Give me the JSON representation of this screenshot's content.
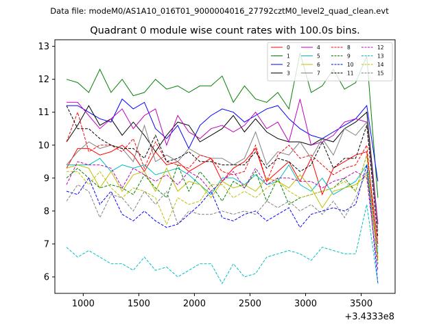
{
  "chart_data": {
    "type": "line",
    "suptitle": "Data file: modeM0/AS1A10_016T01_9000004016_27792cztM0_level2_quad_clean.evt",
    "title": "Quadrant 0 module wise count rates with 100.0s bins.",
    "xlabel": "",
    "ylabel": "",
    "x_offset_label": "+3.4333e8",
    "xlim": [
      745,
      3805
    ],
    "ylim": [
      5.5,
      13.2
    ],
    "x_ticks": [
      1000,
      1500,
      2000,
      2500,
      3000,
      3500
    ],
    "x_tick_labels": [
      "1000",
      "1500",
      "2000",
      "2500",
      "3000",
      "3500"
    ],
    "y_ticks": [
      6,
      7,
      8,
      9,
      10,
      11,
      12,
      13
    ],
    "y_tick_labels": [
      "6",
      "7",
      "8",
      "9",
      "10",
      "11",
      "12",
      "13"
    ],
    "legend_position": "top-right",
    "x": [
      850,
      950,
      1050,
      1150,
      1250,
      1350,
      1450,
      1550,
      1650,
      1750,
      1850,
      1950,
      2050,
      2150,
      2250,
      2350,
      2450,
      2550,
      2650,
      2750,
      2850,
      2950,
      3050,
      3150,
      3250,
      3350,
      3450,
      3550,
      3650
    ],
    "series": [
      {
        "name": "0",
        "color": "#ff0000",
        "dash": "solid",
        "values": [
          9.3,
          9.9,
          9.9,
          9.7,
          9.8,
          10.0,
          9.7,
          9.2,
          9.8,
          9.4,
          9.5,
          9.2,
          9.4,
          9.6,
          8.9,
          9.3,
          9.5,
          9.9,
          8.9,
          9.2,
          9.5,
          8.9,
          9.6,
          8.5,
          9.3,
          9.5,
          9.7,
          9.8,
          7.0
        ]
      },
      {
        "name": "1",
        "color": "#008000",
        "dash": "solid",
        "values": [
          12.0,
          11.9,
          11.6,
          12.3,
          11.6,
          12.0,
          11.5,
          11.6,
          12.0,
          11.7,
          11.8,
          11.6,
          11.8,
          11.8,
          12.1,
          11.3,
          11.8,
          11.4,
          11.3,
          11.6,
          11.1,
          12.8,
          11.6,
          11.8,
          12.3,
          11.7,
          11.9,
          12.7,
          8.4
        ]
      },
      {
        "name": "2",
        "color": "#0000ff",
        "dash": "solid",
        "values": [
          11.2,
          11.2,
          11.0,
          10.8,
          10.7,
          11.4,
          11.1,
          11.3,
          10.5,
          10.2,
          10.6,
          9.9,
          10.6,
          10.9,
          11.1,
          11.0,
          10.7,
          10.9,
          11.1,
          11.2,
          10.8,
          10.5,
          10.3,
          10.2,
          10.4,
          10.6,
          10.8,
          11.2,
          8.9
        ]
      },
      {
        "name": "3",
        "color": "#000000",
        "dash": "solid",
        "values": [
          10.1,
          10.6,
          11.2,
          10.6,
          10.8,
          10.3,
          10.7,
          10.3,
          9.8,
          10.3,
          10.7,
          10.6,
          10.1,
          10.3,
          10.5,
          10.9,
          10.4,
          10.8,
          10.4,
          10.2,
          10.1,
          10.1,
          10.0,
          10.2,
          10.1,
          10.5,
          10.7,
          11.0,
          7.6
        ]
      },
      {
        "name": "4",
        "color": "#bf00bf",
        "dash": "solid",
        "values": [
          11.3,
          11.3,
          10.9,
          10.5,
          10.8,
          11.1,
          10.5,
          10.9,
          11.1,
          10.0,
          10.9,
          10.4,
          10.2,
          10.5,
          10.6,
          10.4,
          10.6,
          11.0,
          10.5,
          10.7,
          10.1,
          11.4,
          10.0,
          10.1,
          10.3,
          10.7,
          10.8,
          10.7,
          7.6
        ]
      },
      {
        "name": "5",
        "color": "#00bfbf",
        "dash": "solid",
        "values": [
          9.4,
          9.4,
          9.4,
          9.6,
          9.2,
          9.4,
          9.3,
          9.4,
          9.1,
          9.2,
          9.3,
          9.1,
          8.8,
          8.5,
          9.0,
          9.0,
          8.8,
          9.1,
          8.8,
          8.9,
          9.4,
          8.8,
          8.6,
          9.0,
          8.5,
          8.7,
          8.9,
          9.4,
          6.7
        ]
      },
      {
        "name": "6",
        "color": "#bfbf00",
        "dash": "solid",
        "values": [
          9.3,
          9.4,
          9.3,
          8.7,
          9.2,
          8.6,
          9.1,
          9.2,
          8.6,
          9.3,
          8.6,
          8.9,
          8.8,
          8.4,
          8.9,
          8.7,
          8.8,
          8.6,
          9.0,
          8.9,
          8.7,
          9.1,
          8.7,
          8.1,
          8.6,
          8.7,
          8.8,
          9.1,
          6.6
        ]
      },
      {
        "name": "7",
        "color": "#808080",
        "dash": "solid",
        "values": [
          9.4,
          9.8,
          10.1,
          9.9,
          10.0,
          9.9,
          9.5,
          10.6,
          9.5,
          9.7,
          9.5,
          9.9,
          9.7,
          9.6,
          9.6,
          9.4,
          9.6,
          10.4,
          9.4,
          9.8,
          9.7,
          10.1,
          9.6,
          10.2,
          9.7,
          10.5,
          10.3,
          10.7,
          7.4
        ]
      },
      {
        "name": "8",
        "color": "#ff0000",
        "dash": "dashed",
        "values": [
          10.1,
          11.0,
          9.8,
          10.0,
          10.0,
          9.8,
          10.2,
          9.3,
          10.1,
          9.5,
          9.4,
          9.3,
          9.7,
          9.6,
          9.2,
          9.1,
          9.2,
          10.0,
          8.9,
          9.7,
          10.0,
          9.6,
          9.7,
          9.4,
          9.1,
          9.3,
          9.4,
          10.0,
          6.5
        ]
      },
      {
        "name": "9",
        "color": "#008000",
        "dash": "dashed",
        "values": [
          9.0,
          9.3,
          9.0,
          8.7,
          8.8,
          8.7,
          8.5,
          9.1,
          8.7,
          8.4,
          9.4,
          8.6,
          9.2,
          8.8,
          8.3,
          8.9,
          8.7,
          9.2,
          8.3,
          9.0,
          8.2,
          8.4,
          8.5,
          8.6,
          8.7,
          9.0,
          8.6,
          9.7,
          6.4
        ]
      },
      {
        "name": "10",
        "color": "#0000ff",
        "dash": "dashed",
        "values": [
          8.6,
          8.5,
          9.0,
          8.2,
          8.6,
          7.9,
          7.7,
          8.0,
          7.7,
          7.5,
          7.6,
          7.9,
          8.2,
          8.6,
          7.8,
          7.7,
          7.9,
          8.0,
          7.7,
          7.9,
          8.1,
          7.5,
          7.9,
          8.0,
          8.1,
          8.0,
          8.2,
          9.4,
          5.8
        ]
      },
      {
        "name": "11",
        "color": "#000000",
        "dash": "dashed",
        "values": [
          11.2,
          10.5,
          10.5,
          10.2,
          10.0,
          9.9,
          9.9,
          9.6,
          10.3,
          9.5,
          9.6,
          9.8,
          9.5,
          9.5,
          9.4,
          9.4,
          9.4,
          9.8,
          9.3,
          9.6,
          9.5,
          9.2,
          9.4,
          10.1,
          9.3,
          9.6,
          9.6,
          10.6,
          7.2
        ]
      },
      {
        "name": "12",
        "color": "#bf00bf",
        "dash": "dashed",
        "values": [
          8.8,
          9.5,
          9.4,
          9.4,
          9.3,
          8.7,
          9.3,
          9.1,
          8.9,
          9.1,
          8.8,
          9.2,
          9.0,
          8.6,
          8.9,
          9.2,
          8.7,
          9.3,
          8.8,
          9.0,
          9.0,
          8.9,
          8.9,
          8.7,
          8.9,
          9.0,
          9.2,
          9.0,
          6.2
        ]
      },
      {
        "name": "13",
        "color": "#00bfbf",
        "dash": "dashed",
        "values": [
          6.9,
          6.6,
          6.8,
          6.6,
          6.4,
          6.4,
          6.2,
          6.6,
          6.2,
          6.3,
          6.0,
          6.2,
          6.4,
          6.4,
          5.8,
          6.4,
          6.0,
          6.1,
          6.6,
          6.7,
          6.8,
          6.7,
          6.5,
          6.9,
          6.8,
          6.7,
          6.7,
          8.2,
          5.8
        ]
      },
      {
        "name": "14",
        "color": "#bfbf00",
        "dash": "dashed",
        "values": [
          9.2,
          9.2,
          8.8,
          9.2,
          8.7,
          8.4,
          8.7,
          8.6,
          8.4,
          7.6,
          8.4,
          8.2,
          8.3,
          8.8,
          8.8,
          8.4,
          8.6,
          8.4,
          8.7,
          8.9,
          8.6,
          8.4,
          8.5,
          8.6,
          8.7,
          8.9,
          8.6,
          9.7,
          6.5
        ]
      },
      {
        "name": "15",
        "color": "#808080",
        "dash": "dashed",
        "values": [
          8.3,
          8.8,
          8.6,
          7.8,
          8.5,
          8.4,
          8.0,
          8.6,
          8.2,
          8.6,
          7.6,
          8.0,
          7.9,
          7.9,
          8.0,
          7.9,
          8.0,
          7.9,
          8.3,
          8.1,
          8.3,
          8.0,
          8.2,
          7.9,
          8.3,
          7.8,
          8.4,
          9.2,
          6.9
        ]
      }
    ]
  }
}
